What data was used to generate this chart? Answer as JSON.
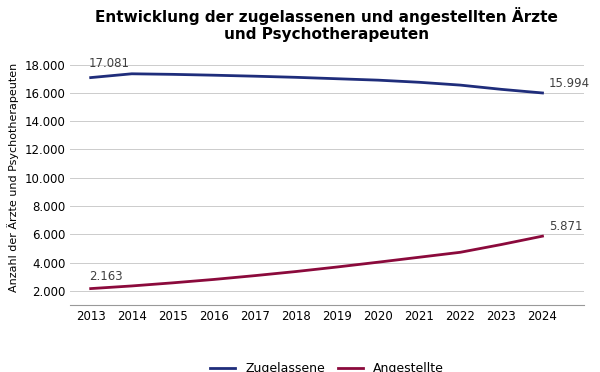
{
  "title": "Entwicklung der zugelassenen und angestellten Ärzte\nund Psychotherapeuten",
  "ylabel": "Anzahl der Ärzte und Psychotherapeuten",
  "years": [
    2013,
    2014,
    2015,
    2016,
    2017,
    2018,
    2019,
    2020,
    2021,
    2022,
    2023,
    2024
  ],
  "zugelassene": [
    17081,
    17350,
    17310,
    17250,
    17180,
    17100,
    17000,
    16900,
    16750,
    16550,
    16250,
    15994
  ],
  "angestellte": [
    2163,
    2350,
    2570,
    2810,
    3080,
    3370,
    3690,
    4030,
    4380,
    4730,
    5280,
    5871
  ],
  "zugelassene_color": "#1f2d7b",
  "angestellte_color": "#8b0a3c",
  "ylim_min": 1000,
  "ylim_max": 19000,
  "yticks": [
    2000,
    4000,
    6000,
    8000,
    10000,
    12000,
    14000,
    16000,
    18000
  ],
  "legend_zugelassene": "Zugelassene",
  "legend_angestellte": "Angestellte",
  "annotation_z_start": "17.081",
  "annotation_z_end": "15.994",
  "annotation_a_start": "2.163",
  "annotation_a_end": "5.871",
  "annotation_fontsize": 8.5,
  "annotation_color": "#404040",
  "background_color": "#ffffff",
  "grid_color": "#cccccc",
  "title_fontsize": 11,
  "ylabel_fontsize": 8,
  "tick_fontsize": 8.5,
  "legend_fontsize": 9,
  "linewidth": 2.0
}
